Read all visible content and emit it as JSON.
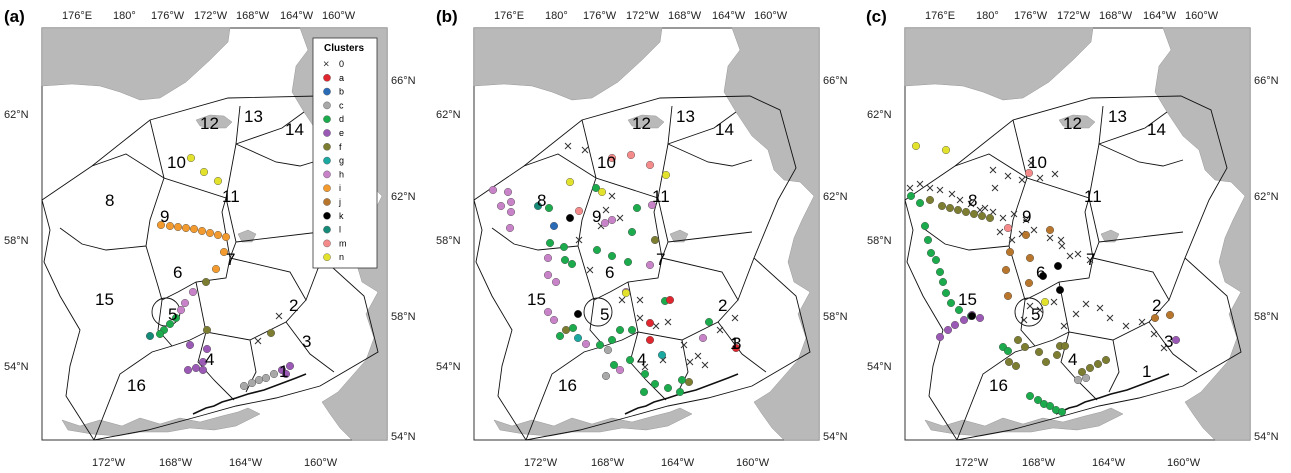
{
  "panels": [
    {
      "id": "a",
      "label": "(a)",
      "top_ticks": [
        "176°E",
        "180°",
        "176°W",
        "172°W",
        "168°W",
        "164°W",
        "160°W"
      ],
      "right_ticks": [
        "66°N",
        "62°N",
        "58°N",
        "54°N"
      ],
      "left_ticks": [
        "62°N",
        "58°N",
        "54°N"
      ],
      "bottom_ticks": [
        "172°W",
        "168°W",
        "164°W",
        "160°W"
      ],
      "regions": [
        "1",
        "2",
        "3",
        "4",
        "5",
        "6",
        "7",
        "8",
        "9",
        "10",
        "11",
        "12",
        "13",
        "14",
        "15",
        "16"
      ],
      "legend": {
        "title": "Clusters",
        "items": [
          {
            "key": "0",
            "symbol": "x",
            "color": "#333333"
          },
          {
            "key": "a",
            "symbol": "dot",
            "color": "#e0262e"
          },
          {
            "key": "b",
            "symbol": "dot",
            "color": "#2a6bb8"
          },
          {
            "key": "c",
            "symbol": "dot",
            "color": "#a8a8a8"
          },
          {
            "key": "d",
            "symbol": "dot",
            "color": "#1bab4c"
          },
          {
            "key": "e",
            "symbol": "dot",
            "color": "#9b59b6"
          },
          {
            "key": "f",
            "symbol": "dot",
            "color": "#7d7d32"
          },
          {
            "key": "g",
            "symbol": "dot",
            "color": "#1aa8a0"
          },
          {
            "key": "h",
            "symbol": "dot",
            "color": "#c882c8"
          },
          {
            "key": "i",
            "symbol": "dot",
            "color": "#f29a2e"
          },
          {
            "key": "j",
            "symbol": "dot",
            "color": "#b8762c"
          },
          {
            "key": "k",
            "symbol": "dot",
            "color": "#000000"
          },
          {
            "key": "l",
            "symbol": "dot",
            "color": "#168a78"
          },
          {
            "key": "m",
            "symbol": "dot",
            "color": "#f48a8a"
          },
          {
            "key": "n",
            "symbol": "dot",
            "color": "#e2e22c"
          }
        ]
      }
    },
    {
      "id": "b",
      "label": "(b)",
      "top_ticks": [
        "176°E",
        "180°",
        "176°W",
        "172°W",
        "168°W",
        "164°W",
        "160°W"
      ],
      "right_ticks": [
        "66°N",
        "62°N",
        "58°N",
        "54°N"
      ],
      "left_ticks": [
        "62°N",
        "58°N",
        "54°N"
      ],
      "bottom_ticks": [
        "172°W",
        "168°W",
        "164°W",
        "160°W"
      ],
      "regions": [
        "1",
        "2",
        "3",
        "4",
        "5",
        "6",
        "7",
        "8",
        "9",
        "10",
        "11",
        "12",
        "13",
        "14",
        "15",
        "16"
      ]
    },
    {
      "id": "c",
      "label": "(c)",
      "top_ticks": [
        "176°E",
        "180°",
        "176°W",
        "172°W",
        "168°W",
        "164°W",
        "160°W"
      ],
      "right_ticks": [
        "66°N",
        "62°N",
        "58°N",
        "54°N"
      ],
      "left_ticks": [
        "62°N",
        "58°N",
        "54°N"
      ],
      "bottom_ticks": [
        "172°W",
        "168°W",
        "164°W",
        "160°W"
      ],
      "regions": [
        "1",
        "2",
        "3",
        "4",
        "5",
        "6",
        "7",
        "8",
        "9",
        "10",
        "11",
        "12",
        "13",
        "14",
        "15",
        "16"
      ]
    }
  ],
  "stations": {
    "a": [
      [
        "n",
        191,
        158
      ],
      [
        "n",
        204,
        172
      ],
      [
        "n",
        218,
        181
      ],
      [
        "i",
        161,
        225
      ],
      [
        "i",
        170,
        226
      ],
      [
        "i",
        178,
        227
      ],
      [
        "i",
        186,
        228
      ],
      [
        "i",
        194,
        229
      ],
      [
        "i",
        202,
        231
      ],
      [
        "i",
        210,
        233
      ],
      [
        "i",
        218,
        235
      ],
      [
        "i",
        226,
        237
      ],
      [
        "i",
        224,
        252
      ],
      [
        "i",
        216,
        269
      ],
      [
        "f",
        206,
        282
      ],
      [
        "h",
        193,
        292
      ],
      [
        "h",
        185,
        303
      ],
      [
        "h",
        181,
        310
      ],
      [
        "d",
        176,
        318
      ],
      [
        "d",
        170,
        324
      ],
      [
        "d",
        164,
        330
      ],
      [
        "d",
        160,
        334
      ],
      [
        "l",
        150,
        336
      ],
      [
        "f",
        207,
        330
      ],
      [
        "e",
        190,
        345
      ],
      [
        "e",
        207,
        349
      ],
      [
        "e",
        203,
        362
      ],
      [
        "e",
        196,
        368
      ],
      [
        "e",
        188,
        370
      ],
      [
        "e",
        203,
        370
      ],
      [
        "f",
        271,
        333
      ],
      [
        "c",
        244,
        386
      ],
      [
        "c",
        252,
        383
      ],
      [
        "c",
        259,
        380
      ],
      [
        "c",
        266,
        378
      ],
      [
        "c",
        274,
        374
      ],
      [
        "e",
        282,
        370
      ],
      [
        "e",
        290,
        366
      ],
      [
        "e",
        286,
        374
      ]
    ],
    "b": [
      [
        "m",
        612,
        158
      ],
      [
        "m",
        631,
        155
      ],
      [
        "m",
        650,
        165
      ],
      [
        "n",
        666,
        175
      ],
      [
        "h",
        493,
        190
      ],
      [
        "h",
        508,
        192
      ],
      [
        "h",
        511,
        202
      ],
      [
        "h",
        501,
        206
      ],
      [
        "h",
        511,
        212
      ],
      [
        "l",
        538,
        206
      ],
      [
        "d",
        549,
        208
      ],
      [
        "b",
        554,
        226
      ],
      [
        "k",
        570,
        218
      ],
      [
        "m",
        579,
        211
      ],
      [
        "n",
        570,
        182
      ],
      [
        "d",
        596,
        188
      ],
      [
        "n",
        602,
        192
      ],
      [
        "h",
        605,
        223
      ],
      [
        "h",
        612,
        220
      ],
      [
        "d",
        637,
        208
      ],
      [
        "h",
        652,
        205
      ],
      [
        "d",
        632,
        232
      ],
      [
        "f",
        655,
        240
      ],
      [
        "h",
        510,
        228
      ],
      [
        "d",
        550,
        243
      ],
      [
        "d",
        564,
        247
      ],
      [
        "h",
        548,
        258
      ],
      [
        "h",
        548,
        275
      ],
      [
        "d",
        565,
        260
      ],
      [
        "d",
        572,
        264
      ],
      [
        "d",
        597,
        250
      ],
      [
        "d",
        612,
        256
      ],
      [
        "d",
        628,
        262
      ],
      [
        "h",
        650,
        265
      ],
      [
        "h",
        556,
        282
      ],
      [
        "h",
        548,
        312
      ],
      [
        "h",
        554,
        320
      ],
      [
        "d",
        560,
        336
      ],
      [
        "f",
        566,
        330
      ],
      [
        "d",
        573,
        328
      ],
      [
        "g",
        578,
        338
      ],
      [
        "h",
        586,
        344
      ],
      [
        "d",
        600,
        345
      ],
      [
        "d",
        612,
        340
      ],
      [
        "d",
        620,
        330
      ],
      [
        "d",
        632,
        330
      ],
      [
        "a",
        650,
        323
      ],
      [
        "d",
        665,
        301
      ],
      [
        "a",
        670,
        300
      ],
      [
        "a",
        650,
        340
      ],
      [
        "k",
        578,
        314
      ],
      [
        "h",
        626,
        292
      ],
      [
        "n",
        626,
        293
      ],
      [
        "c",
        608,
        350
      ],
      [
        "d",
        614,
        365
      ],
      [
        "g",
        662,
        355
      ],
      [
        "d",
        630,
        360
      ],
      [
        "h",
        703,
        338
      ],
      [
        "d",
        709,
        322
      ],
      [
        "a",
        736,
        348
      ],
      [
        "c",
        606,
        376
      ],
      [
        "d",
        645,
        374
      ],
      [
        "h",
        620,
        370
      ],
      [
        "d",
        655,
        384
      ],
      [
        "d",
        668,
        388
      ],
      [
        "d",
        680,
        392
      ],
      [
        "f",
        689,
        382
      ],
      [
        "d",
        644,
        392
      ],
      [
        "d",
        682,
        380
      ]
    ],
    "c": [
      [
        "n",
        916,
        146
      ],
      [
        "n",
        946,
        150
      ],
      [
        "m",
        1029,
        173
      ],
      [
        "d",
        911,
        196
      ],
      [
        "d",
        920,
        203
      ],
      [
        "f",
        930,
        200
      ],
      [
        "f",
        942,
        206
      ],
      [
        "f",
        950,
        208
      ],
      [
        "f",
        958,
        210
      ],
      [
        "f",
        966,
        212
      ],
      [
        "f",
        974,
        214
      ],
      [
        "f",
        982,
        216
      ],
      [
        "f",
        990,
        218
      ],
      [
        "d",
        925,
        226
      ],
      [
        "d",
        928,
        240
      ],
      [
        "d",
        931,
        253
      ],
      [
        "d",
        936,
        260
      ],
      [
        "d",
        940,
        272
      ],
      [
        "d",
        943,
        282
      ],
      [
        "d",
        946,
        293
      ],
      [
        "d",
        951,
        303
      ],
      [
        "d",
        959,
        310
      ],
      [
        "d",
        971,
        316
      ],
      [
        "e",
        980,
        318
      ],
      [
        "e",
        940,
        337
      ],
      [
        "e",
        948,
        330
      ],
      [
        "e",
        955,
        325
      ],
      [
        "e",
        964,
        320
      ],
      [
        "e",
        972,
        315
      ],
      [
        "j",
        1026,
        235
      ],
      [
        "j",
        1050,
        230
      ],
      [
        "m",
        1008,
        228
      ],
      [
        "j",
        1030,
        258
      ],
      [
        "j",
        1029,
        283
      ],
      [
        "j",
        1006,
        270
      ],
      [
        "j",
        1010,
        252
      ],
      [
        "j",
        1008,
        296
      ],
      [
        "k",
        1043,
        276
      ],
      [
        "k",
        1058,
        266
      ],
      [
        "k",
        1060,
        290
      ],
      [
        "n",
        1045,
        302
      ],
      [
        "k",
        972,
        316
      ],
      [
        "f",
        1018,
        340
      ],
      [
        "f",
        1025,
        347
      ],
      [
        "f",
        1039,
        352
      ],
      [
        "f",
        1060,
        346
      ],
      [
        "f",
        1046,
        362
      ],
      [
        "f",
        1057,
        355
      ],
      [
        "f",
        1065,
        346
      ],
      [
        "f",
        1082,
        372
      ],
      [
        "f",
        1090,
        368
      ],
      [
        "f",
        1098,
        364
      ],
      [
        "f",
        1106,
        360
      ],
      [
        "d",
        1003,
        347
      ],
      [
        "d",
        1008,
        351
      ],
      [
        "f",
        1009,
        362
      ],
      [
        "f",
        1016,
        366
      ],
      [
        "j",
        1155,
        318
      ],
      [
        "j",
        1170,
        315
      ],
      [
        "e",
        1176,
        340
      ],
      [
        "c",
        1078,
        380
      ],
      [
        "c",
        1086,
        378
      ],
      [
        "d",
        1030,
        396
      ],
      [
        "d",
        1038,
        400
      ],
      [
        "d",
        1044,
        404
      ],
      [
        "d",
        1050,
        406
      ],
      [
        "d",
        1056,
        410
      ],
      [
        "d",
        1062,
        412
      ]
    ]
  },
  "crosses": {
    "a": [
      [
        258,
        341
      ],
      [
        279,
        316
      ]
    ],
    "b": [
      [
        568,
        146
      ],
      [
        585,
        150
      ],
      [
        606,
        210
      ],
      [
        612,
        196
      ],
      [
        620,
        218
      ],
      [
        601,
        226
      ],
      [
        579,
        240
      ],
      [
        590,
        270
      ],
      [
        622,
        300
      ],
      [
        640,
        300
      ],
      [
        640,
        318
      ],
      [
        656,
        326
      ],
      [
        684,
        345
      ],
      [
        698,
        356
      ],
      [
        720,
        330
      ],
      [
        735,
        318
      ],
      [
        663,
        360
      ],
      [
        645,
        367
      ],
      [
        690,
        362
      ],
      [
        668,
        322
      ],
      [
        705,
        365
      ]
    ],
    "c": [
      [
        910,
        188
      ],
      [
        920,
        184
      ],
      [
        930,
        188
      ],
      [
        940,
        190
      ],
      [
        952,
        194
      ],
      [
        960,
        200
      ],
      [
        971,
        204
      ],
      [
        980,
        210
      ],
      [
        993,
        212
      ],
      [
        1003,
        218
      ],
      [
        1014,
        214
      ],
      [
        1026,
        220
      ],
      [
        995,
        188
      ],
      [
        1008,
        176
      ],
      [
        1022,
        180
      ],
      [
        1040,
        178
      ],
      [
        1055,
        174
      ],
      [
        1031,
        163
      ],
      [
        993,
        170
      ],
      [
        985,
        208
      ],
      [
        1000,
        232
      ],
      [
        1012,
        240
      ],
      [
        1022,
        234
      ],
      [
        1034,
        230
      ],
      [
        1050,
        238
      ],
      [
        1062,
        246
      ],
      [
        1070,
        256
      ],
      [
        1061,
        240
      ],
      [
        1078,
        254
      ],
      [
        1090,
        260
      ],
      [
        1024,
        320
      ],
      [
        1040,
        310
      ],
      [
        1054,
        302
      ],
      [
        1064,
        326
      ],
      [
        1076,
        314
      ],
      [
        1086,
        304
      ],
      [
        1100,
        308
      ],
      [
        1110,
        318
      ],
      [
        1126,
        326
      ],
      [
        1142,
        322
      ],
      [
        1154,
        334
      ],
      [
        1164,
        348
      ],
      [
        1030,
        306
      ]
    ]
  }
}
